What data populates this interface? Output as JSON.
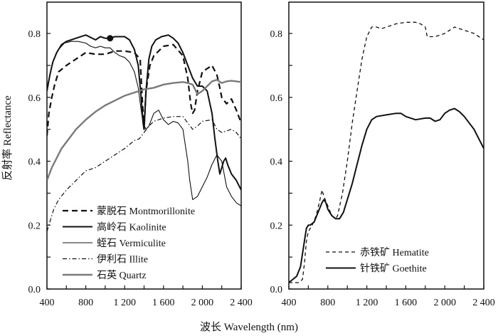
{
  "chart_data": [
    {
      "type": "line",
      "panel": "left",
      "xlabel": "波长 Wavelength (nm)",
      "ylabel": "反射率 Reflectance",
      "xlim": [
        400,
        2400
      ],
      "ylim": [
        0.0,
        0.9
      ],
      "xticks": [
        400,
        800,
        1200,
        1600,
        2000,
        2400
      ],
      "xtick_labels": [
        "400",
        "800",
        "1 200",
        "1 600",
        "2 000",
        "2 400"
      ],
      "yticks": [
        0.0,
        0.2,
        0.4,
        0.6,
        0.8
      ],
      "ytick_labels": [
        "0.0",
        "0.2",
        "0.4",
        "0.6",
        "0.8"
      ],
      "grid": false,
      "legend_position": "bottom-left",
      "series": [
        {
          "name": "蒙脱石 Montmorillonite",
          "style": "dashed-thick",
          "color": "#111111",
          "x": [
            400,
            420,
            450,
            480,
            520,
            600,
            700,
            800,
            900,
            1000,
            1100,
            1200,
            1300,
            1360,
            1380,
            1400,
            1420,
            1460,
            1500,
            1600,
            1700,
            1800,
            1850,
            1880,
            1900,
            1920,
            1950,
            2000,
            2100,
            2150,
            2180,
            2200,
            2250,
            2300,
            2350,
            2400
          ],
          "y": [
            0.48,
            0.55,
            0.6,
            0.64,
            0.68,
            0.7,
            0.72,
            0.74,
            0.735,
            0.735,
            0.745,
            0.745,
            0.74,
            0.72,
            0.6,
            0.5,
            0.62,
            0.7,
            0.73,
            0.76,
            0.765,
            0.73,
            0.66,
            0.58,
            0.55,
            0.56,
            0.62,
            0.68,
            0.7,
            0.67,
            0.63,
            0.6,
            0.58,
            0.595,
            0.56,
            0.52
          ]
        },
        {
          "name": "高岭石 Kaolinite",
          "style": "solid-thick",
          "color": "#111111",
          "x": [
            400,
            430,
            460,
            500,
            550,
            600,
            650,
            700,
            800,
            900,
            950,
            1000,
            1050,
            1100,
            1200,
            1250,
            1300,
            1340,
            1370,
            1390,
            1400,
            1420,
            1450,
            1480,
            1520,
            1580,
            1650,
            1700,
            1750,
            1800,
            1850,
            1900,
            1950,
            2000,
            2050,
            2100,
            2130,
            2160,
            2180,
            2200,
            2220,
            2240,
            2260,
            2300,
            2350,
            2400
          ],
          "y": [
            0.62,
            0.67,
            0.71,
            0.74,
            0.765,
            0.775,
            0.78,
            0.785,
            0.795,
            0.78,
            0.79,
            0.785,
            0.785,
            0.79,
            0.79,
            0.78,
            0.75,
            0.7,
            0.6,
            0.52,
            0.5,
            0.62,
            0.72,
            0.76,
            0.78,
            0.79,
            0.795,
            0.785,
            0.77,
            0.74,
            0.7,
            0.66,
            0.635,
            0.635,
            0.62,
            0.55,
            0.47,
            0.4,
            0.36,
            0.38,
            0.4,
            0.41,
            0.39,
            0.36,
            0.34,
            0.31
          ]
        },
        {
          "name": "蛭石 Vermiculite",
          "style": "solid-thin",
          "color": "#111111",
          "x": [
            400,
            430,
            470,
            520,
            580,
            650,
            720,
            800,
            850,
            900,
            950,
            1000,
            1050,
            1100,
            1150,
            1200,
            1250,
            1300,
            1340,
            1370,
            1390,
            1420,
            1450,
            1500,
            1550,
            1600,
            1650,
            1700,
            1750,
            1800,
            1850,
            1870,
            1900,
            1950,
            2000,
            2050,
            2100,
            2150,
            2200,
            2250,
            2300,
            2350,
            2400
          ],
          "y": [
            0.63,
            0.67,
            0.72,
            0.75,
            0.77,
            0.775,
            0.775,
            0.77,
            0.76,
            0.755,
            0.76,
            0.755,
            0.755,
            0.74,
            0.73,
            0.725,
            0.71,
            0.68,
            0.63,
            0.56,
            0.52,
            0.5,
            0.51,
            0.55,
            0.56,
            0.53,
            0.515,
            0.525,
            0.52,
            0.5,
            0.4,
            0.34,
            0.28,
            0.29,
            0.32,
            0.35,
            0.39,
            0.42,
            0.4,
            0.32,
            0.29,
            0.27,
            0.26
          ]
        },
        {
          "name": "伊利石 Illite",
          "style": "dash-dot",
          "color": "#111111",
          "x": [
            400,
            430,
            470,
            520,
            600,
            700,
            800,
            900,
            1000,
            1100,
            1200,
            1300,
            1350,
            1400,
            1450,
            1500,
            1600,
            1700,
            1800,
            1850,
            1900,
            1950,
            2000,
            2100,
            2150,
            2200,
            2250,
            2300,
            2350,
            2400
          ],
          "y": [
            0.18,
            0.21,
            0.25,
            0.28,
            0.31,
            0.34,
            0.37,
            0.38,
            0.4,
            0.42,
            0.44,
            0.465,
            0.47,
            0.49,
            0.51,
            0.525,
            0.535,
            0.54,
            0.54,
            0.52,
            0.5,
            0.51,
            0.525,
            0.53,
            0.5,
            0.49,
            0.495,
            0.5,
            0.49,
            0.47
          ]
        },
        {
          "name": "石英 Quartz",
          "style": "solid-gray",
          "color": "#7a7a7a",
          "x": [
            400,
            450,
            500,
            550,
            600,
            700,
            800,
            900,
            1000,
            1100,
            1200,
            1300,
            1400,
            1500,
            1600,
            1700,
            1800,
            1850,
            1900,
            1950,
            2000,
            2050,
            2100,
            2150,
            2200,
            2250,
            2300,
            2350,
            2400
          ],
          "y": [
            0.34,
            0.38,
            0.41,
            0.44,
            0.46,
            0.5,
            0.53,
            0.555,
            0.575,
            0.59,
            0.605,
            0.615,
            0.625,
            0.63,
            0.64,
            0.645,
            0.648,
            0.645,
            0.64,
            0.61,
            0.62,
            0.635,
            0.65,
            0.655,
            0.645,
            0.65,
            0.652,
            0.65,
            0.648
          ]
        }
      ],
      "annotations": [
        {
          "type": "marker",
          "shape": "filled-circle",
          "x": 1050,
          "y": 0.785
        }
      ]
    },
    {
      "type": "line",
      "panel": "right",
      "xlabel": "波长 Wavelength (nm)",
      "ylabel": "",
      "xlim": [
        400,
        2400
      ],
      "ylim": [
        0.0,
        0.9
      ],
      "xticks": [
        400,
        800,
        1200,
        1600,
        2000,
        2400
      ],
      "xtick_labels": [
        "400",
        "800",
        "1 200",
        "1 600",
        "2 000",
        "2 400"
      ],
      "yticks": [
        0.0,
        0.2,
        0.4,
        0.6,
        0.8
      ],
      "ytick_labels": [
        "0.0",
        "0.2",
        "0.4",
        "0.6",
        "0.8"
      ],
      "grid": false,
      "legend_position": "bottom-right",
      "series": [
        {
          "name": "赤铁矿 Hematite",
          "style": "dashed-thin",
          "color": "#111111",
          "x": [
            400,
            450,
            500,
            540,
            560,
            580,
            600,
            640,
            680,
            720,
            740,
            760,
            800,
            840,
            880,
            900,
            950,
            1000,
            1050,
            1100,
            1150,
            1200,
            1250,
            1300,
            1350,
            1400,
            1500,
            1600,
            1700,
            1750,
            1800,
            1820,
            1900,
            2000,
            2100,
            2200,
            2300,
            2400
          ],
          "y": [
            0.02,
            0.02,
            0.02,
            0.03,
            0.08,
            0.15,
            0.18,
            0.2,
            0.23,
            0.28,
            0.31,
            0.29,
            0.26,
            0.23,
            0.22,
            0.23,
            0.3,
            0.4,
            0.52,
            0.62,
            0.72,
            0.79,
            0.82,
            0.82,
            0.815,
            0.82,
            0.83,
            0.835,
            0.835,
            0.83,
            0.82,
            0.79,
            0.79,
            0.8,
            0.82,
            0.81,
            0.8,
            0.78
          ]
        },
        {
          "name": "针铁矿 Goethite",
          "style": "solid-thick",
          "color": "#111111",
          "x": [
            400,
            440,
            480,
            520,
            560,
            580,
            600,
            620,
            660,
            700,
            740,
            760,
            780,
            800,
            840,
            880,
            920,
            960,
            1000,
            1050,
            1100,
            1150,
            1200,
            1250,
            1300,
            1400,
            1500,
            1550,
            1600,
            1700,
            1800,
            1850,
            1900,
            1950,
            2000,
            2050,
            2100,
            2150,
            2200,
            2250,
            2300,
            2350,
            2400
          ],
          "y": [
            0.02,
            0.03,
            0.04,
            0.07,
            0.15,
            0.19,
            0.2,
            0.2,
            0.21,
            0.24,
            0.27,
            0.28,
            0.27,
            0.25,
            0.23,
            0.22,
            0.22,
            0.24,
            0.28,
            0.33,
            0.39,
            0.45,
            0.5,
            0.53,
            0.54,
            0.545,
            0.55,
            0.55,
            0.54,
            0.53,
            0.535,
            0.535,
            0.525,
            0.53,
            0.55,
            0.56,
            0.565,
            0.555,
            0.54,
            0.52,
            0.5,
            0.47,
            0.44
          ]
        }
      ]
    }
  ]
}
